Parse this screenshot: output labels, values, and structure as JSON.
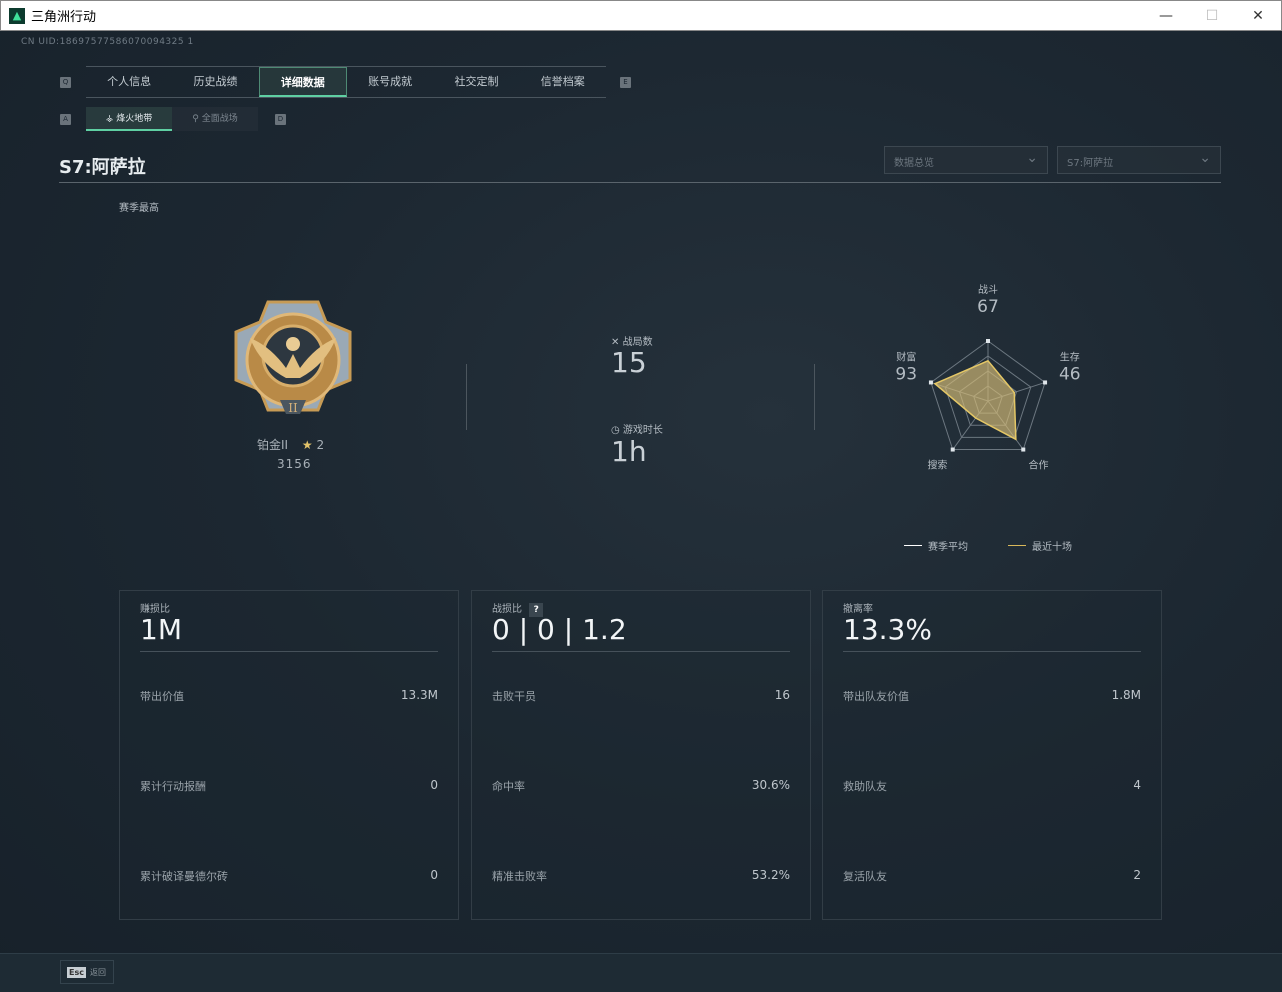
{
  "window": {
    "title": "三角洲行动",
    "minimize": "—",
    "maximize": "☐",
    "close": "✕"
  },
  "uid": "CN UID:18697577586070094325 1",
  "tabs": {
    "key_left": "Q",
    "key_right": "E",
    "items": [
      "个人信息",
      "历史战绩",
      "详细数据",
      "账号成就",
      "社交定制",
      "信誉档案"
    ],
    "active": 2
  },
  "subtabs": {
    "key_left": "A",
    "key_right": "D",
    "items": [
      {
        "icon": "⚶",
        "label": "烽火地带"
      },
      {
        "icon": "⚲",
        "label": "全面战场"
      }
    ],
    "active": 0
  },
  "season_title": "S7:阿萨拉",
  "dropdowns": [
    "数据总览",
    "S7:阿萨拉"
  ],
  "rank": {
    "section_label": "赛季最高",
    "name": "铂金II",
    "stars": "2",
    "score": "3156",
    "badge": "II"
  },
  "summary": {
    "matches_label": "战局数",
    "matches": "15",
    "time_label": "游戏时长",
    "time": "1h"
  },
  "radar": {
    "axes": [
      {
        "label": "战斗",
        "value": 67
      },
      {
        "label": "生存",
        "value": 46
      },
      {
        "label": "合作",
        "value": 79
      },
      {
        "label": "搜索",
        "value": 35
      },
      {
        "label": "财富",
        "value": 93
      }
    ],
    "max": 100,
    "legend": [
      {
        "name": "赛季平均",
        "color": "#ffffff"
      },
      {
        "name": "最近十场",
        "color": "#d8b85a"
      }
    ]
  },
  "cards": [
    {
      "label": "赚损比",
      "value": "1M",
      "rows": [
        [
          "带出价值",
          "13.3M"
        ],
        [
          "累计行动报酬",
          "0"
        ],
        [
          "累计破译曼德尔砖",
          "0"
        ]
      ]
    },
    {
      "label": "战损比",
      "help": "?",
      "value": "0 | 0 | 1.2",
      "rows": [
        [
          "击败干员",
          "16"
        ],
        [
          "命中率",
          "30.6%"
        ],
        [
          "精准击败率",
          "53.2%"
        ]
      ]
    },
    {
      "label": "撤离率",
      "value": "13.3%",
      "rows": [
        [
          "带出队友价值",
          "1.8M"
        ],
        [
          "救助队友",
          "4"
        ],
        [
          "复活队友",
          "2"
        ]
      ]
    }
  ],
  "footer": {
    "key": "Esc",
    "label": "返回"
  }
}
